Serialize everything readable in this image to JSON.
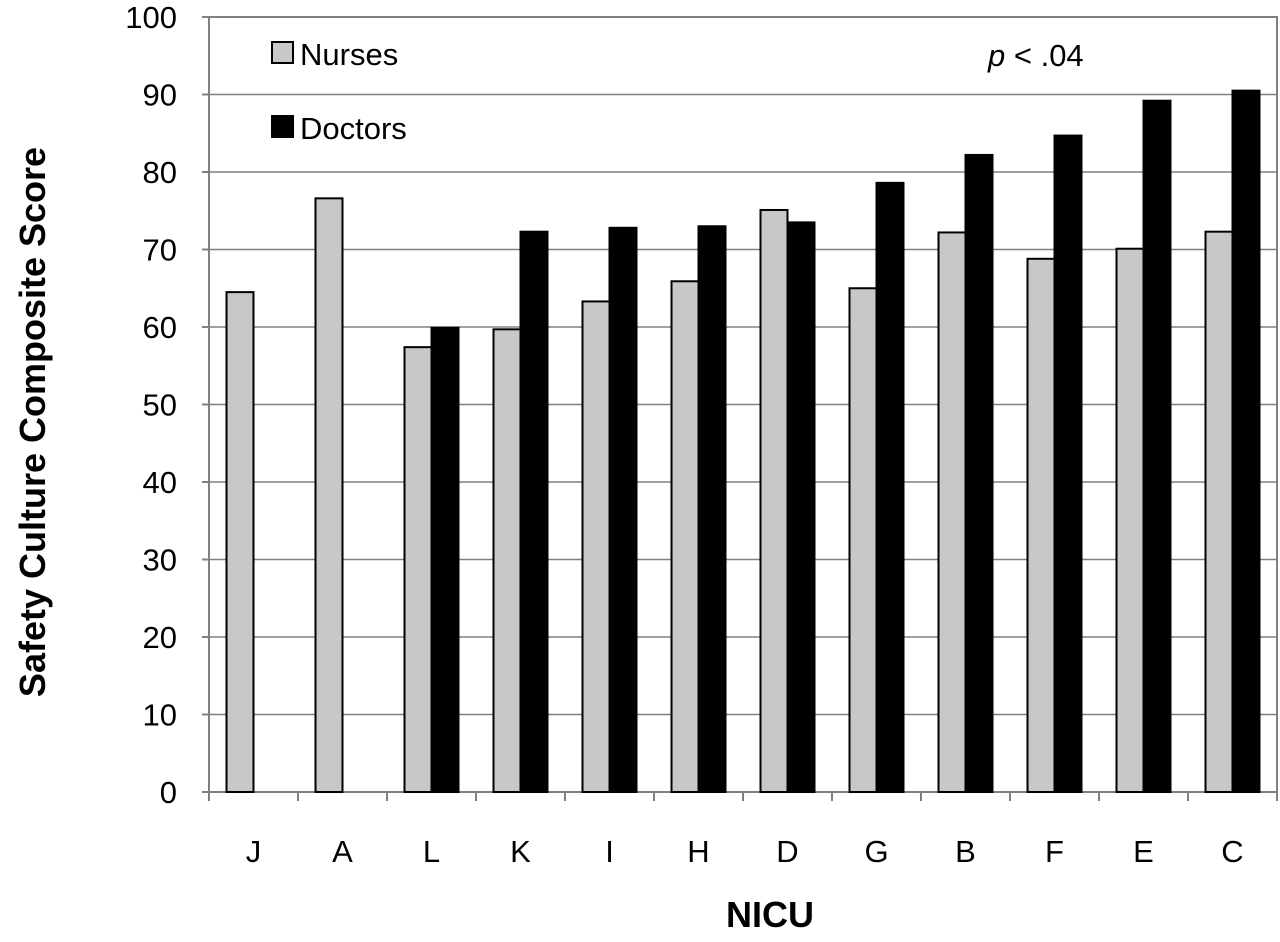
{
  "chart_data": {
    "type": "bar",
    "title": "",
    "xlabel": "NICU",
    "ylabel": "Safety Culture Composite Score",
    "ylim": [
      0,
      100
    ],
    "yticks": [
      0,
      10,
      20,
      30,
      40,
      50,
      60,
      70,
      80,
      90,
      100
    ],
    "grid": "horizontal",
    "legend_position": "top-left",
    "annotation": {
      "italic": "p",
      "text": " < .04"
    },
    "categories": [
      "J",
      "A",
      "L",
      "K",
      "I",
      "H",
      "D",
      "G",
      "B",
      "F",
      "E",
      "C"
    ],
    "series": [
      {
        "name": "Nurses",
        "color": "#c8c8c8",
        "values": [
          64.5,
          76.6,
          57.4,
          59.7,
          63.3,
          65.9,
          75.1,
          65.0,
          72.2,
          68.8,
          70.1,
          72.3
        ]
      },
      {
        "name": "Doctors",
        "color": "#000000",
        "values": [
          null,
          null,
          59.9,
          72.3,
          72.8,
          73.0,
          73.5,
          78.6,
          82.2,
          84.7,
          89.2,
          90.5
        ]
      }
    ]
  }
}
